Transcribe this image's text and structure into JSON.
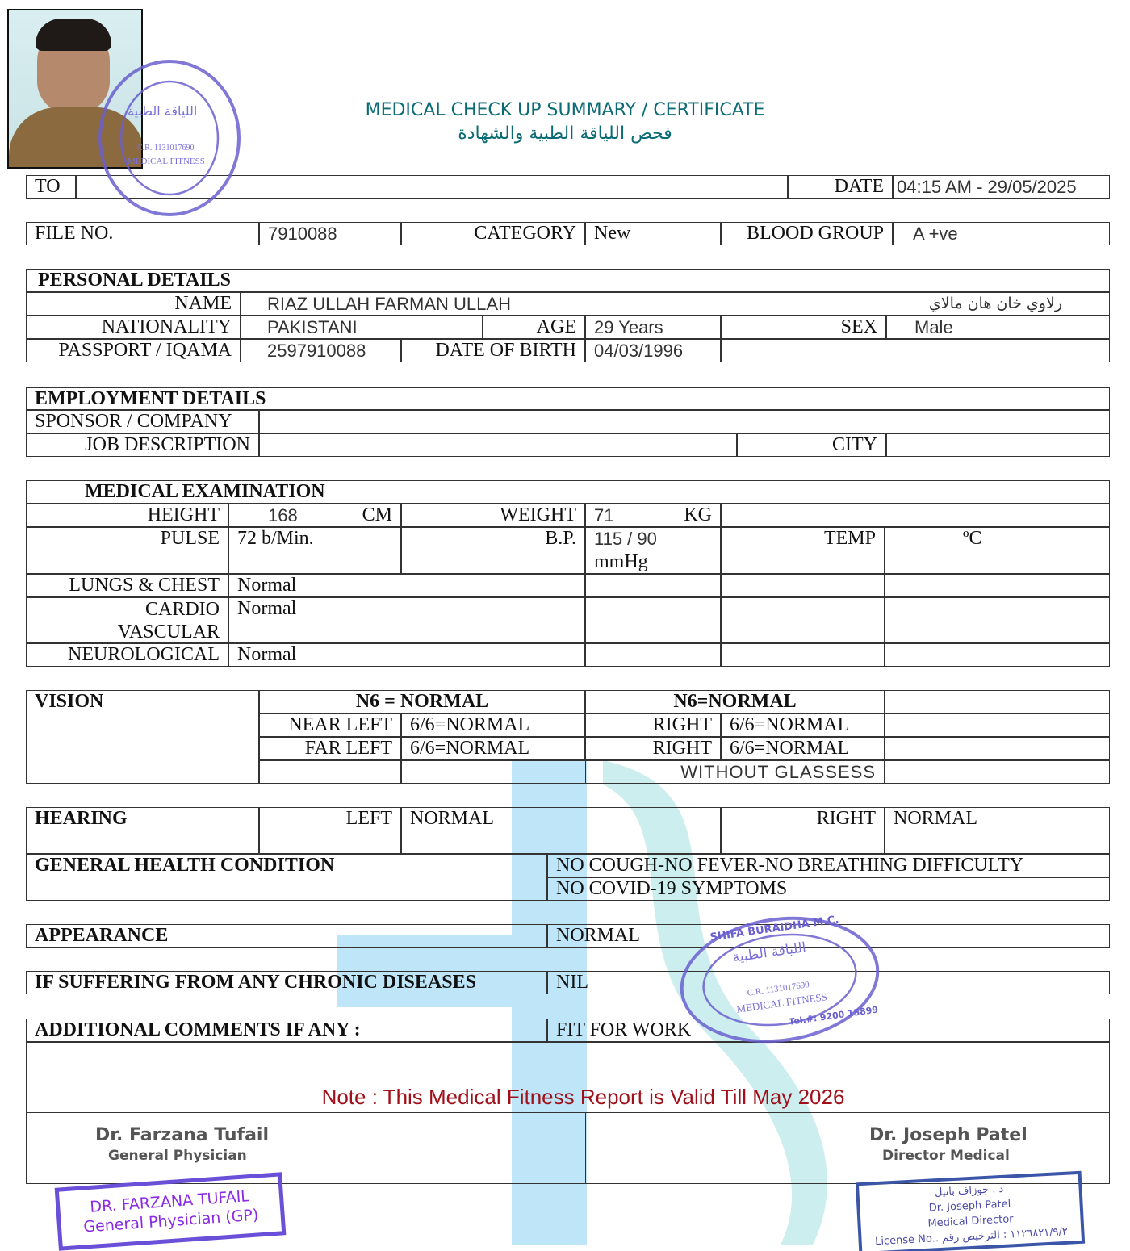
{
  "header": {
    "title": "MEDICAL CHECK UP SUMMARY / CERTIFICATE",
    "title_ar": "فحص اللياقة الطبية والشهادة"
  },
  "top": {
    "to_label": "TO",
    "to_value": "",
    "date_label": "DATE",
    "date_value": "04:15 AM -  29/05/2025"
  },
  "file": {
    "file_label": "FILE NO.",
    "file_value": "7910088",
    "category_label": "CATEGORY",
    "category_value": "New",
    "blood_label": "BLOOD GROUP",
    "blood_value": "A +ve"
  },
  "personal": {
    "heading": "PERSONAL DETAILS",
    "name_label": "NAME",
    "name_value": "RIAZ ULLAH FARMAN ULLAH",
    "name_ar": "رلاوي خان هان مالاي",
    "nationality_label": "NATIONALITY",
    "nationality_value": "PAKISTANI",
    "age_label": "AGE",
    "age_value": "29 Years",
    "sex_label": "SEX",
    "sex_value": "Male",
    "passport_label": "PASSPORT / IQAMA",
    "passport_value": "2597910088",
    "dob_label": "DATE OF BIRTH",
    "dob_value": "04/03/1996"
  },
  "employment": {
    "heading": "EMPLOYMENT DETAILS",
    "sponsor_label": "SPONSOR / COMPANY",
    "job_label": "JOB DESCRIPTION",
    "city_label": "CITY"
  },
  "medical": {
    "heading": "MEDICAL EXAMINATION",
    "height_label": "HEIGHT",
    "height_value": "168",
    "height_unit": "CM",
    "weight_label": "WEIGHT",
    "weight_value": "71",
    "weight_unit": "KG",
    "pulse_label": "PULSE",
    "pulse_value": "72 b/Min.",
    "bp_label": "B.P.",
    "bp_value": "115 / 90",
    "bp_unit": "mmHg",
    "temp_label": "TEMP",
    "temp_unit": "ºC",
    "lungs_label": "LUNGS & CHEST",
    "lungs_value": "Normal",
    "cardio_label": "CARDIO",
    "cardio_label2": "VASCULAR",
    "cardio_value": "Normal",
    "neuro_label": "NEUROLOGICAL",
    "neuro_value": "Normal"
  },
  "vision": {
    "label": "VISION",
    "left_head": "N6 = NORMAL",
    "right_head": "N6=NORMAL",
    "near_left": "NEAR LEFT",
    "near_left_value": "6/6=NORMAL",
    "near_right": "RIGHT",
    "near_right_value": "6/6=NORMAL",
    "far_left": "FAR LEFT",
    "far_left_value": "6/6=NORMAL",
    "far_right": "RIGHT",
    "far_right_value": "6/6=NORMAL",
    "glasses": "WITHOUT GLASSESS"
  },
  "hearing": {
    "label": "HEARING",
    "left_label": "LEFT",
    "left_value": "NORMAL",
    "right_label": "RIGHT",
    "right_value": "NORMAL"
  },
  "general": {
    "label": "GENERAL HEALTH CONDITION",
    "value1": "NO COUGH-NO FEVER-NO BREATHING DIFFICULTY",
    "value2": "NO COVID-19 SYMPTOMS"
  },
  "appearance": {
    "label": "APPEARANCE",
    "value": "NORMAL"
  },
  "chronic": {
    "label": "IF SUFFERING FROM ANY CHRONIC DISEASES",
    "value": "NIL"
  },
  "comments": {
    "label": "ADDITIONAL COMMENTS IF ANY :",
    "value": "FIT FOR WORK"
  },
  "note": "Note : This Medical Fitness Report is Valid Till May 2026",
  "signatures": {
    "left_name": "Dr. Farzana Tufail",
    "left_title": "General Physician",
    "left_stamp1": "DR. FARZANA TUFAIL",
    "left_stamp2": "General Physician (GP)",
    "right_name": "Dr. Joseph Patel",
    "right_title": "Director Medical",
    "right_stamp_ar": "د . جوزاف باتيل",
    "right_stamp1": "Dr. Joseph Patel",
    "right_stamp2": "Medical Director",
    "right_stamp3": "License No.. ١١٢٦٨٢١/٩/٢ : الترخيص رقم"
  },
  "stamp": {
    "ring_text": "SHIFA BURAIDHA M.C.",
    "ar": "اللياقة الطبية",
    "cr": "C.R. 1131017690",
    "fitness": "MEDICAL FITNESS",
    "tel": "Tel.#: 9200 15899"
  },
  "colors": {
    "title": "#0b6b74",
    "note": "#a0101a",
    "stamp": "#6a5fcf",
    "watermark": "#bfe6f8"
  }
}
